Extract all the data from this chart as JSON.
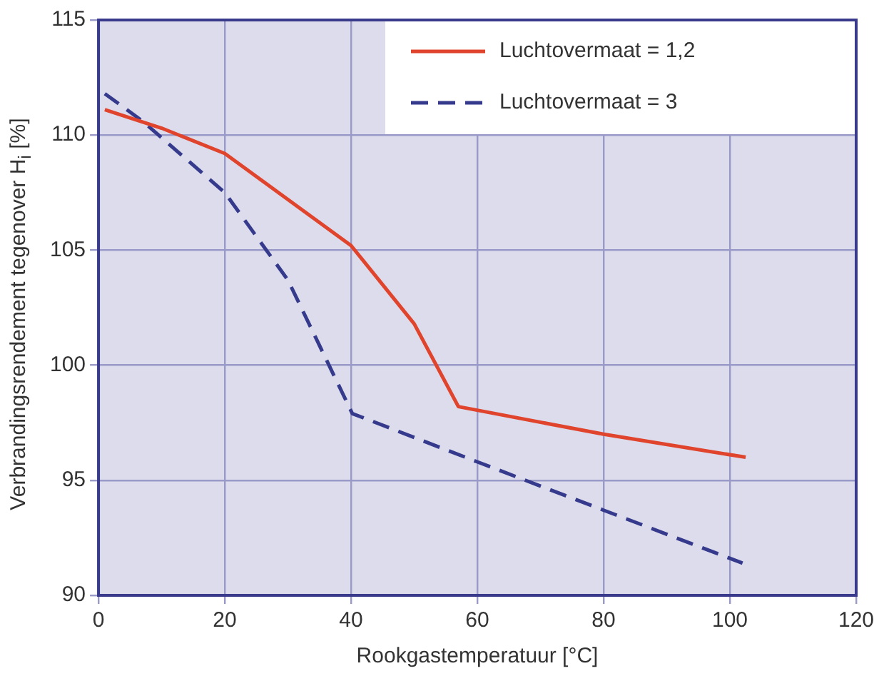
{
  "chart_data": {
    "type": "line",
    "xlabel": "Rookgastemperatuur [°C]",
    "ylabel": "Verbrandingsrendement tegenover H$_{i}$ [%]",
    "xlim": [
      0,
      120
    ],
    "xticks": [
      0,
      20,
      40,
      60,
      80,
      100,
      120
    ],
    "ylim": [
      90,
      115
    ],
    "yticks": [
      90,
      95,
      100,
      105,
      110,
      115
    ],
    "grid": true,
    "legend": "top right",
    "marker": "none",
    "series": [
      {
        "name": "Luchtovermaat = 1,2",
        "color": "#e0442c",
        "line_style": "solid",
        "x": [
          1,
          10,
          20,
          30,
          40,
          50,
          57,
          80,
          102.5
        ],
        "values": [
          111.1,
          110.3,
          109.2,
          107.2,
          105.2,
          101.8,
          98.2,
          97.0,
          96.0
        ]
      },
      {
        "name": "Luchtovermaat = 3",
        "color": "#353a8c",
        "line_style": "dashed",
        "x": [
          1,
          7,
          20,
          30,
          40.2,
          60,
          80,
          102
        ],
        "values": [
          111.8,
          110.6,
          107.5,
          103.7,
          97.9,
          95.8,
          93.7,
          91.4
        ]
      }
    ]
  }
}
